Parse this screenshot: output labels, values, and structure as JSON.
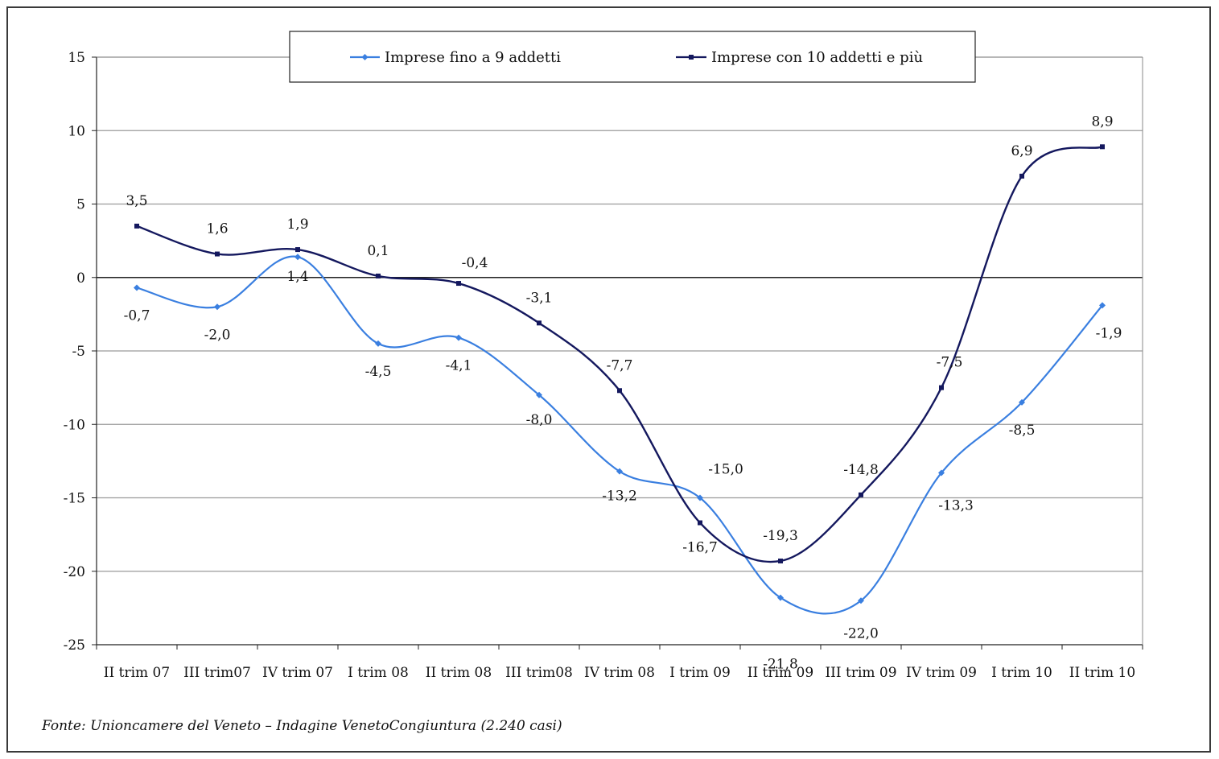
{
  "chart_data": {
    "type": "line",
    "categories": [
      "II trim 07",
      "III trim07",
      "IV trim 07",
      "I trim 08",
      "II trim 08",
      "III trim08",
      "IV trim 08",
      "I trim 09",
      "II trim 09",
      "III trim 09",
      "IV trim 09",
      "I trim 10",
      "II trim 10"
    ],
    "ylim": [
      -25,
      15
    ],
    "yticks": [
      15,
      10,
      5,
      0,
      -5,
      -10,
      -15,
      -20,
      -25
    ],
    "grid": true,
    "legend_position": "top",
    "series": [
      {
        "name": "Imprese fino a 9 addetti",
        "color": "#3a7fe0",
        "values": [
          -0.7,
          -2.0,
          1.4,
          -4.5,
          -4.1,
          -8.0,
          -13.2,
          -15.0,
          -21.8,
          -22.0,
          -13.3,
          -8.5,
          -1.9
        ],
        "labels": [
          "-0,7",
          "-2,0",
          "1,4",
          "-4,5",
          "-4,1",
          "-8,0",
          "-13,2",
          "-15,0",
          "-21,8",
          "-22,0",
          "-13,3",
          "-8,5",
          "-1,9"
        ]
      },
      {
        "name": "Imprese con 10 addetti e più",
        "color": "#14185e",
        "values": [
          3.5,
          1.6,
          1.9,
          0.1,
          -0.4,
          -3.1,
          -7.7,
          -16.7,
          -19.3,
          -14.8,
          -7.5,
          6.9,
          8.9
        ],
        "labels": [
          "3,5",
          "1,6",
          "1,9",
          "0,1",
          "-0,4",
          "-3,1",
          "-7,7",
          "-16,7",
          "-19,3",
          "-14,8",
          "-7,5",
          "6,9",
          "8,9"
        ]
      }
    ]
  },
  "source": "Fonte: Unioncamere del Veneto – Indagine VenetoCongiuntura (2.240 casi)"
}
